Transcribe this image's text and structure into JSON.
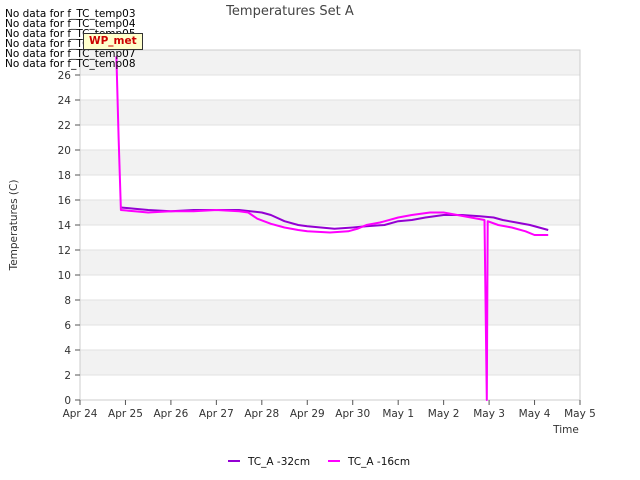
{
  "no_data_messages": [
    "No data for f_TC_temp03",
    "No data for f_TC_temp04",
    "No data for f_TC_temp05",
    "No data for f_TC_temp06",
    "No data for f_TC_temp07",
    "No data for f_TC_temp08"
  ],
  "badge": {
    "text": "WP_met",
    "color": "#cc0000",
    "background": "#ffffcc"
  },
  "chart_data": {
    "type": "line",
    "title": "Temperatures Set A",
    "xlabel": "Time",
    "ylabel": "Temperatures (C)",
    "x_ticks": [
      "Apr 24",
      "Apr 25",
      "Apr 26",
      "Apr 27",
      "Apr 28",
      "Apr 29",
      "Apr 30",
      "May 1",
      "May 2",
      "May 3",
      "May 4",
      "May 5"
    ],
    "xlim": [
      0,
      11
    ],
    "ylim": [
      0,
      28
    ],
    "y_ticks": [
      0,
      2,
      4,
      6,
      8,
      10,
      12,
      14,
      16,
      18,
      20,
      22,
      24,
      26
    ],
    "grid": "horizontal alternating bands",
    "legend_position": "bottom-center",
    "series": [
      {
        "name": "TC_A -32cm",
        "color": "#9400d3",
        "points": [
          [
            0.9,
            15.4
          ],
          [
            1.2,
            15.3
          ],
          [
            1.5,
            15.2
          ],
          [
            2.0,
            15.1
          ],
          [
            2.5,
            15.2
          ],
          [
            3.0,
            15.2
          ],
          [
            3.5,
            15.2
          ],
          [
            4.0,
            15.0
          ],
          [
            4.2,
            14.8
          ],
          [
            4.5,
            14.3
          ],
          [
            4.8,
            14.0
          ],
          [
            5.0,
            13.9
          ],
          [
            5.3,
            13.8
          ],
          [
            5.6,
            13.7
          ],
          [
            6.0,
            13.8
          ],
          [
            6.3,
            13.9
          ],
          [
            6.7,
            14.0
          ],
          [
            7.0,
            14.3
          ],
          [
            7.3,
            14.4
          ],
          [
            7.6,
            14.6
          ],
          [
            8.0,
            14.8
          ],
          [
            8.4,
            14.8
          ],
          [
            8.8,
            14.7
          ],
          [
            9.1,
            14.6
          ],
          [
            9.3,
            14.4
          ],
          [
            9.6,
            14.2
          ],
          [
            9.9,
            14.0
          ],
          [
            10.1,
            13.8
          ],
          [
            10.3,
            13.6
          ]
        ]
      },
      {
        "name": "TC_A -16cm",
        "color": "#ff00ff",
        "points": [
          [
            0.8,
            27.5
          ],
          [
            0.85,
            21.0
          ],
          [
            0.9,
            15.2
          ],
          [
            1.2,
            15.1
          ],
          [
            1.5,
            15.0
          ],
          [
            2.0,
            15.1
          ],
          [
            2.5,
            15.1
          ],
          [
            3.0,
            15.2
          ],
          [
            3.5,
            15.1
          ],
          [
            3.7,
            15.0
          ],
          [
            3.9,
            14.5
          ],
          [
            4.2,
            14.1
          ],
          [
            4.5,
            13.8
          ],
          [
            4.8,
            13.6
          ],
          [
            5.0,
            13.5
          ],
          [
            5.5,
            13.4
          ],
          [
            5.9,
            13.5
          ],
          [
            6.1,
            13.7
          ],
          [
            6.3,
            14.0
          ],
          [
            6.6,
            14.2
          ],
          [
            7.0,
            14.6
          ],
          [
            7.3,
            14.8
          ],
          [
            7.7,
            15.0
          ],
          [
            8.0,
            15.0
          ],
          [
            8.3,
            14.8
          ],
          [
            8.6,
            14.6
          ],
          [
            8.9,
            14.4
          ],
          [
            8.95,
            0.0
          ],
          [
            8.97,
            14.3
          ],
          [
            9.2,
            14.0
          ],
          [
            9.5,
            13.8
          ],
          [
            9.8,
            13.5
          ],
          [
            10.0,
            13.2
          ],
          [
            10.3,
            13.2
          ]
        ]
      }
    ]
  }
}
